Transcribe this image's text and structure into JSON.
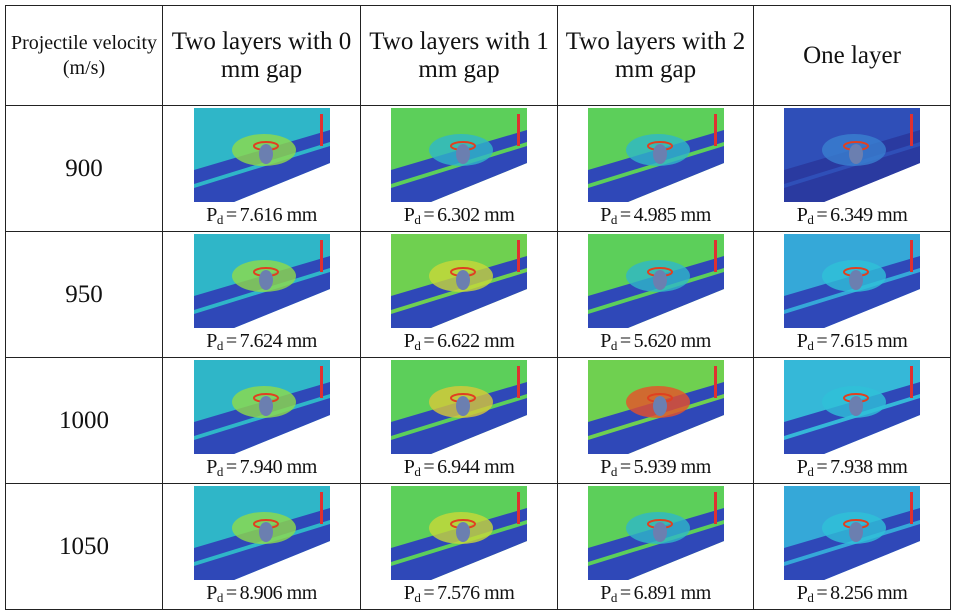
{
  "header": {
    "velocity": "Projectile velocity (m/s)",
    "columns": [
      "Two layers with 0 mm gap",
      "Two layers with 1 mm gap",
      "Two layers with 2 mm gap",
      "One layer"
    ]
  },
  "label": {
    "symbol": "P",
    "subscript": "d",
    "equals": "="
  },
  "rows": [
    {
      "velocity": "900",
      "cells": [
        {
          "value": "7.616 mm",
          "colors": [
            "#2fb6c8",
            "#2f48b8",
            "#8fdc4a",
            "#e04020"
          ]
        },
        {
          "value": "6.302 mm",
          "colors": [
            "#5ccf5a",
            "#2f48b8",
            "#2fb6c8",
            "#e04020"
          ]
        },
        {
          "value": "4.985 mm",
          "colors": [
            "#5ccf5a",
            "#2f48b8",
            "#2fb6c8",
            "#e04020"
          ]
        },
        {
          "value": "6.349 mm",
          "colors": [
            "#2f4fb8",
            "#2a3aa0",
            "#3a7fd0",
            "#e04020"
          ]
        }
      ]
    },
    {
      "velocity": "950",
      "cells": [
        {
          "value": "7.624 mm",
          "colors": [
            "#2fb6c8",
            "#2f48b8",
            "#8fdc4a",
            "#e04020"
          ]
        },
        {
          "value": "6.622 mm",
          "colors": [
            "#6fd050",
            "#2f48b8",
            "#c8d838",
            "#e04020"
          ]
        },
        {
          "value": "5.620 mm",
          "colors": [
            "#5ccf5a",
            "#2f48b8",
            "#2fb6c8",
            "#e04020"
          ]
        },
        {
          "value": "7.615 mm",
          "colors": [
            "#35a8d8",
            "#2f48b8",
            "#30c0d8",
            "#e04020"
          ]
        }
      ]
    },
    {
      "velocity": "1000",
      "cells": [
        {
          "value": "7.940 mm",
          "colors": [
            "#2fb6c8",
            "#2f48b8",
            "#8fdc4a",
            "#e04020"
          ]
        },
        {
          "value": "6.944 mm",
          "colors": [
            "#5ccf5a",
            "#2f48b8",
            "#d8c838",
            "#e04020"
          ]
        },
        {
          "value": "5.939 mm",
          "colors": [
            "#6fd050",
            "#2f48b8",
            "#e85028",
            "#e04020"
          ]
        },
        {
          "value": "7.938 mm",
          "colors": [
            "#35b8d8",
            "#2f48b8",
            "#30c0d8",
            "#e04020"
          ]
        }
      ]
    },
    {
      "velocity": "1050",
      "cells": [
        {
          "value": "8.906 mm",
          "colors": [
            "#2fb6c8",
            "#2f48b8",
            "#8fdc4a",
            "#e04020"
          ]
        },
        {
          "value": "7.576 mm",
          "colors": [
            "#5ccf5a",
            "#2f48b8",
            "#c8d838",
            "#e04020"
          ]
        },
        {
          "value": "6.891 mm",
          "colors": [
            "#5ccf5a",
            "#2f48b8",
            "#2fb6c8",
            "#e04020"
          ]
        },
        {
          "value": "8.256 mm",
          "colors": [
            "#35a8d8",
            "#2f48b8",
            "#30c0d8",
            "#e04020"
          ]
        }
      ]
    }
  ]
}
